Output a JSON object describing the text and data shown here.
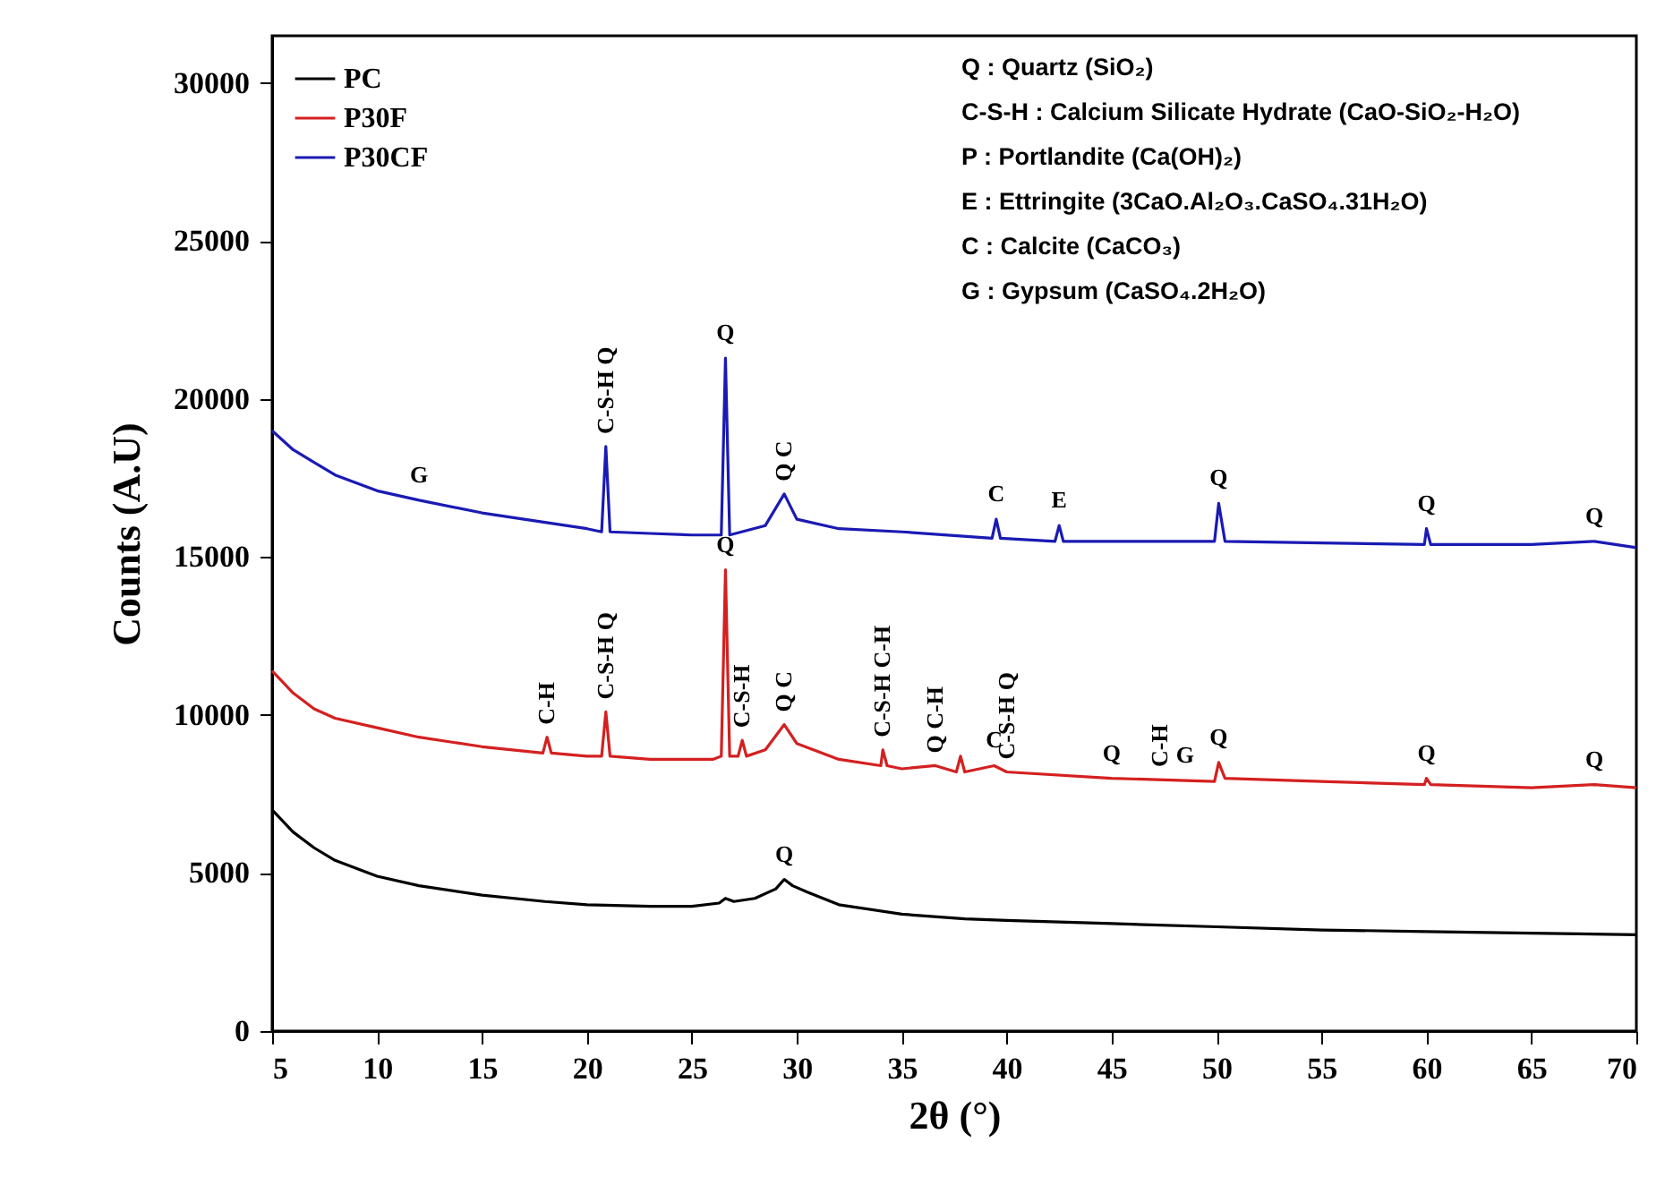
{
  "chart_data": {
    "type": "line",
    "xlabel": "2θ (°)",
    "ylabel": "Counts (A.U)",
    "xlim": [
      5,
      70
    ],
    "xticks": [
      5,
      10,
      15,
      20,
      25,
      30,
      35,
      40,
      45,
      50,
      55,
      60,
      65,
      70
    ],
    "ylim": [
      0,
      31500
    ],
    "yticks": [
      0,
      5000,
      10000,
      15000,
      20000,
      25000,
      30000
    ],
    "grid": false,
    "legend": "top left",
    "line_style": "solid",
    "marker": "none",
    "series": [
      {
        "name": "PC",
        "color": "#000000",
        "x": [
          5,
          6,
          7,
          8,
          10,
          12,
          15,
          18,
          20,
          23,
          25,
          26.3,
          26.6,
          27,
          28,
          29,
          29.4,
          29.8,
          30.5,
          32,
          35,
          38,
          40,
          45,
          50,
          55,
          60,
          65,
          70
        ],
        "values": [
          7000,
          6300,
          5800,
          5400,
          4900,
          4600,
          4300,
          4100,
          4000,
          3950,
          3950,
          4050,
          4200,
          4100,
          4200,
          4500,
          4800,
          4600,
          4400,
          4000,
          3700,
          3550,
          3500,
          3400,
          3300,
          3200,
          3150,
          3100,
          3050
        ]
      },
      {
        "name": "P30F",
        "color": "#d42020",
        "x": [
          5,
          6,
          7,
          8,
          10,
          12,
          15,
          17.9,
          18.1,
          18.3,
          20,
          20.7,
          20.9,
          21.1,
          23,
          26,
          26.4,
          26.6,
          26.8,
          27.2,
          27.4,
          27.6,
          28.5,
          29.4,
          30,
          32,
          34,
          34.1,
          34.3,
          35,
          36.6,
          37.6,
          37.8,
          38,
          39.4,
          40,
          45,
          49.9,
          50.1,
          50.4,
          55,
          59.9,
          60,
          60.2,
          65,
          68,
          70
        ],
        "values": [
          11400,
          10700,
          10200,
          9900,
          9600,
          9300,
          9000,
          8800,
          9300,
          8800,
          8700,
          8700,
          10100,
          8700,
          8600,
          8600,
          8700,
          14600,
          8700,
          8700,
          9200,
          8700,
          8900,
          9700,
          9100,
          8600,
          8400,
          8900,
          8400,
          8300,
          8400,
          8200,
          8700,
          8200,
          8400,
          8200,
          8000,
          7900,
          8500,
          8000,
          7900,
          7800,
          8000,
          7800,
          7700,
          7800,
          7700
        ]
      },
      {
        "name": "P30CF",
        "color": "#1a1ab4",
        "x": [
          5,
          6,
          7,
          8,
          10,
          12,
          15,
          18,
          20,
          20.7,
          20.9,
          21.1,
          23,
          25,
          26.4,
          26.6,
          26.8,
          28.5,
          29.4,
          30,
          32,
          35,
          39.3,
          39.5,
          39.7,
          42.3,
          42.5,
          42.7,
          45,
          49.9,
          50.1,
          50.4,
          55,
          59.9,
          60,
          60.2,
          65,
          68,
          70
        ],
        "values": [
          19000,
          18400,
          18000,
          17600,
          17100,
          16800,
          16400,
          16100,
          15900,
          15800,
          18500,
          15800,
          15750,
          15700,
          15700,
          21300,
          15700,
          16000,
          17000,
          16200,
          15900,
          15800,
          15600,
          16200,
          15600,
          15500,
          16000,
          15500,
          15500,
          15500,
          16700,
          15500,
          15450,
          15400,
          15900,
          15400,
          15400,
          15500,
          15300
        ]
      }
    ],
    "annotations": [
      "Q : Quartz (SiO₂)",
      "C-S-H : Calcium Silicate Hydrate (CaO-SiO₂-H₂O)",
      "P : Portlandite (Ca(OH)₂)",
      "E : Ettringite (3CaO.Al₂O₃.CaSO₄.31H₂O)",
      "C : Calcite (CaCO₃)",
      "G : Gypsum (CaSO₄.2H₂O)",
      {
        "text": "G",
        "x": 12,
        "y": 16800
      },
      {
        "text": "C-S-H Q",
        "x": 20.9,
        "y": 18500
      },
      {
        "text": "Q",
        "x": 26.6,
        "y": 21300
      },
      {
        "text": "Q C",
        "x": 29.4,
        "y": 17000
      },
      {
        "text": "C",
        "x": 39.5,
        "y": 16200
      },
      {
        "text": "E",
        "x": 42.5,
        "y": 16000
      },
      {
        "text": "Q",
        "x": 50.1,
        "y": 16700
      },
      {
        "text": "Q",
        "x": 60,
        "y": 15900
      },
      {
        "text": "Q",
        "x": 68,
        "y": 15500
      },
      {
        "text": "C-H",
        "x": 18.1,
        "y": 9300
      },
      {
        "text": "C-S-H Q",
        "x": 20.9,
        "y": 10100
      },
      {
        "text": "Q",
        "x": 26.6,
        "y": 14600
      },
      {
        "text": "C-S-H",
        "x": 27.4,
        "y": 9200
      },
      {
        "text": "Q C",
        "x": 29.4,
        "y": 9700
      },
      {
        "text": "C-S-H C-H",
        "x": 34.1,
        "y": 8900
      },
      {
        "text": "Q C-H",
        "x": 36.6,
        "y": 8400
      },
      {
        "text": "C",
        "x": 39.4,
        "y": 8400
      },
      {
        "text": "C-S-H Q",
        "x": 40,
        "y": 8200
      },
      {
        "text": "Q",
        "x": 45,
        "y": 8000
      },
      {
        "text": "C-H",
        "x": 47.3,
        "y": 7960
      },
      {
        "text": "G",
        "x": 48.5,
        "y": 7930
      },
      {
        "text": "Q",
        "x": 50.1,
        "y": 8500
      },
      {
        "text": "Q",
        "x": 60,
        "y": 8000
      },
      {
        "text": "Q",
        "x": 68,
        "y": 7800
      },
      {
        "text": "Q",
        "x": 29.4,
        "y": 4800
      }
    ]
  }
}
